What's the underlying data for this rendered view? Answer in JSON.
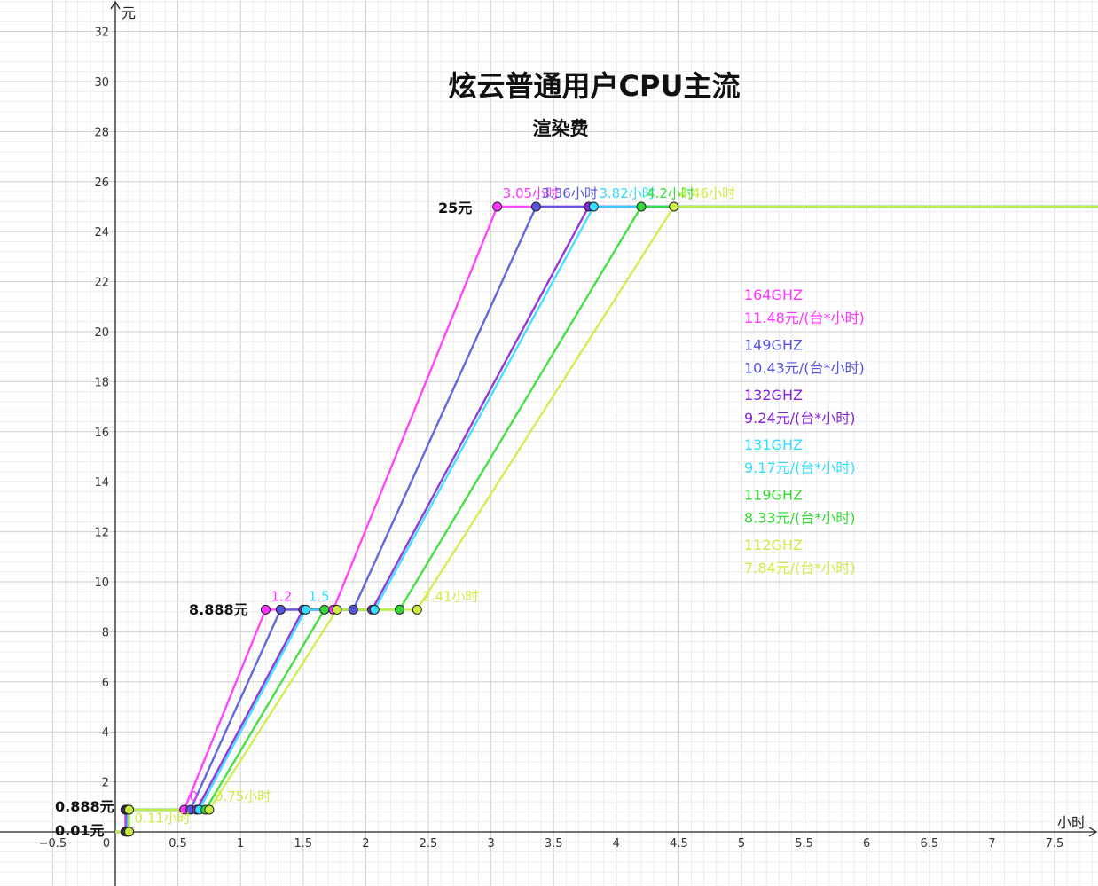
{
  "chart_data": {
    "type": "line",
    "title": "炫云普通用户CPU主流",
    "subtitle": "渲染费",
    "xlabel": "小时",
    "ylabel": "元",
    "xlim": [
      -0.5,
      7.85
    ],
    "ylim": [
      -2,
      33
    ],
    "x_ticks": [
      -0.5,
      0,
      0.5,
      1,
      1.5,
      2,
      2.5,
      3,
      3.5,
      4,
      4.5,
      5,
      5.5,
      6,
      6.5,
      7,
      7.5
    ],
    "x_tick_labels": [
      "−0.5",
      "0",
      "0.5",
      "1",
      "1.5",
      "2",
      "2.5",
      "3",
      "3.5",
      "4",
      "4.5",
      "5",
      "5.5",
      "6",
      "6.5",
      "7",
      "7.5"
    ],
    "y_ticks": [
      2,
      4,
      6,
      8,
      10,
      12,
      14,
      16,
      18,
      20,
      22,
      24,
      26,
      28,
      30,
      32
    ],
    "y_tick_labels": [
      "2",
      "4",
      "6",
      "8",
      "10",
      "12",
      "14",
      "16",
      "18",
      "20",
      "22",
      "24",
      "26",
      "28",
      "30",
      "32"
    ],
    "grid": true,
    "price_levels": [
      {
        "y": 0.01,
        "label": "0.01元"
      },
      {
        "y": 0.888,
        "label": "0.888元"
      },
      {
        "y": 8.888,
        "label": "8.888元"
      },
      {
        "y": 25,
        "label": "25元"
      }
    ],
    "series": [
      {
        "name": "164GHZ",
        "rate_label": "11.48元/(台*小时)",
        "color": "#ff33ff",
        "points": [
          [
            0,
            0
          ],
          [
            0.08,
            0
          ],
          [
            0.08,
            0.888
          ],
          [
            0.55,
            0.888
          ],
          [
            1.2,
            8.888
          ],
          [
            1.74,
            8.888
          ],
          [
            3.05,
            25
          ],
          [
            7.85,
            25
          ]
        ],
        "markers": [
          [
            0.08,
            0.01
          ],
          [
            0.08,
            0.888
          ],
          [
            0.55,
            0.888
          ],
          [
            1.2,
            8.888
          ],
          [
            1.74,
            8.888
          ],
          [
            3.05,
            25
          ]
        ],
        "labels": [
          {
            "x": 3.05,
            "y": 25,
            "text": "3.05小时"
          }
        ]
      },
      {
        "name": "149GHZ",
        "rate_label": "10.43元/(台*小时)",
        "color": "#5555dd",
        "points": [
          [
            0,
            0
          ],
          [
            0.09,
            0
          ],
          [
            0.09,
            0.888
          ],
          [
            0.6,
            0.888
          ],
          [
            1.32,
            8.888
          ],
          [
            1.9,
            8.888
          ],
          [
            3.36,
            25
          ],
          [
            7.85,
            25
          ]
        ],
        "markers": [
          [
            0.09,
            0.01
          ],
          [
            0.09,
            0.888
          ],
          [
            0.6,
            0.888
          ],
          [
            1.32,
            8.888
          ],
          [
            1.9,
            8.888
          ],
          [
            3.36,
            25
          ]
        ],
        "labels": [
          {
            "x": 3.36,
            "y": 25,
            "text": "3.36小时"
          }
        ]
      },
      {
        "name": "132GHZ",
        "rate_label": "9.24元/(台*小时)",
        "color": "#8822dd",
        "points": [
          [
            0,
            0
          ],
          [
            0.1,
            0
          ],
          [
            0.1,
            0.888
          ],
          [
            0.65,
            0.888
          ],
          [
            1.5,
            8.888
          ],
          [
            2.05,
            8.888
          ],
          [
            3.78,
            25
          ],
          [
            7.85,
            25
          ]
        ],
        "markers": [
          [
            0.1,
            0.01
          ],
          [
            0.1,
            0.888
          ],
          [
            0.65,
            0.888
          ],
          [
            1.5,
            8.888
          ],
          [
            2.05,
            8.888
          ],
          [
            3.78,
            25
          ]
        ],
        "labels": []
      },
      {
        "name": "131GHZ",
        "rate_label": "9.17元/(台*小时)",
        "color": "#33ddff",
        "points": [
          [
            0,
            0
          ],
          [
            0.1,
            0
          ],
          [
            0.1,
            0.888
          ],
          [
            0.67,
            0.888
          ],
          [
            1.52,
            8.888
          ],
          [
            2.07,
            8.888
          ],
          [
            3.82,
            25
          ],
          [
            7.85,
            25
          ]
        ],
        "markers": [
          [
            0.1,
            0.01
          ],
          [
            0.1,
            0.888
          ],
          [
            0.67,
            0.888
          ],
          [
            1.52,
            8.888
          ],
          [
            2.07,
            8.888
          ],
          [
            3.82,
            25
          ]
        ],
        "labels": [
          {
            "x": 3.82,
            "y": 25,
            "text": "3.82小时"
          }
        ]
      },
      {
        "name": "119GHZ",
        "rate_label": "8.33元/(台*小时)",
        "color": "#33dd33",
        "points": [
          [
            0,
            0
          ],
          [
            0.11,
            0
          ],
          [
            0.11,
            0.888
          ],
          [
            0.72,
            0.888
          ],
          [
            1.67,
            8.888
          ],
          [
            2.27,
            8.888
          ],
          [
            4.2,
            25
          ],
          [
            7.85,
            25
          ]
        ],
        "markers": [
          [
            0.11,
            0.01
          ],
          [
            0.11,
            0.888
          ],
          [
            0.72,
            0.888
          ],
          [
            1.67,
            8.888
          ],
          [
            2.27,
            8.888
          ],
          [
            4.2,
            25
          ]
        ],
        "labels": [
          {
            "x": 4.2,
            "y": 25,
            "text": "4.2小时"
          }
        ]
      },
      {
        "name": "112GHZ",
        "rate_label": "7.84元/(台*小时)",
        "color": "#ccee44",
        "points": [
          [
            0,
            0
          ],
          [
            0.11,
            0
          ],
          [
            0.11,
            0.888
          ],
          [
            0.75,
            0.888
          ],
          [
            1.77,
            8.888
          ],
          [
            2.41,
            8.888
          ],
          [
            4.46,
            25
          ],
          [
            7.85,
            25
          ]
        ],
        "markers": [
          [
            0.11,
            0.01
          ],
          [
            0.11,
            0.888
          ],
          [
            0.75,
            0.888
          ],
          [
            1.77,
            8.888
          ],
          [
            2.41,
            8.888
          ],
          [
            4.46,
            25
          ]
        ],
        "labels": [
          {
            "x": 4.46,
            "y": 25,
            "text": "4.46小时"
          },
          {
            "x": 2.41,
            "y": 8.888,
            "text": "2.41小时"
          },
          {
            "x": 0.75,
            "y": 0.888,
            "text": "0.75小时"
          },
          {
            "x": 0.11,
            "y": 0.01,
            "text": "0.11小时"
          }
        ]
      }
    ],
    "extra_labels": [
      {
        "x": 1.2,
        "y": 8.888,
        "text": "1.2",
        "color": "#ff33ff"
      },
      {
        "x": 1.5,
        "y": 8.888,
        "text": "1.5",
        "color": "#33ddff"
      },
      {
        "x": 0.55,
        "y": 0.888,
        "text": "0.",
        "color": "#ff33ff"
      }
    ],
    "legend_placement": "right"
  }
}
